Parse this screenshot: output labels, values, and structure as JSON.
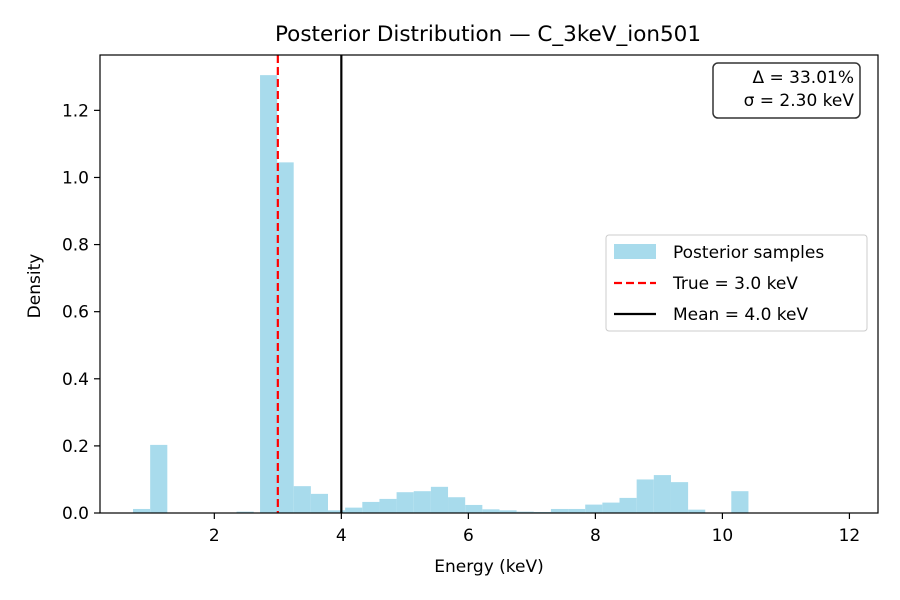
{
  "chart_data": {
    "type": "bar",
    "title": "Posterior Distribution — C_3keV_ion501",
    "xlabel": "Energy (keV)",
    "ylabel": "Density",
    "xlim": [
      0.2,
      12.45
    ],
    "ylim": [
      0,
      1.365
    ],
    "xticks": [
      2,
      4,
      6,
      8,
      10,
      12
    ],
    "yticks": [
      0.0,
      0.2,
      0.4,
      0.6,
      0.8,
      1.0,
      1.2
    ],
    "grid": false,
    "legend_position": "center-right",
    "series": [
      {
        "name": "Posterior samples",
        "kind": "histogram",
        "color": "#a8dbec",
        "bins": [
          {
            "x0": 0.72,
            "x1": 0.99,
            "value": 0.012
          },
          {
            "x0": 0.99,
            "x1": 1.26,
            "value": 0.203
          },
          {
            "x0": 2.35,
            "x1": 2.62,
            "value": 0.004
          },
          {
            "x0": 2.72,
            "x1": 2.99,
            "value": 1.305
          },
          {
            "x0": 2.99,
            "x1": 3.25,
            "value": 1.045
          },
          {
            "x0": 3.25,
            "x1": 3.52,
            "value": 0.08
          },
          {
            "x0": 3.52,
            "x1": 3.79,
            "value": 0.057
          },
          {
            "x0": 3.79,
            "x1": 4.06,
            "value": 0.008
          },
          {
            "x0": 4.06,
            "x1": 4.33,
            "value": 0.016
          },
          {
            "x0": 4.33,
            "x1": 4.6,
            "value": 0.033
          },
          {
            "x0": 4.6,
            "x1": 4.87,
            "value": 0.042
          },
          {
            "x0": 4.87,
            "x1": 5.14,
            "value": 0.062
          },
          {
            "x0": 5.14,
            "x1": 5.41,
            "value": 0.065
          },
          {
            "x0": 5.41,
            "x1": 5.68,
            "value": 0.078
          },
          {
            "x0": 5.68,
            "x1": 5.95,
            "value": 0.047
          },
          {
            "x0": 5.95,
            "x1": 6.22,
            "value": 0.024
          },
          {
            "x0": 6.22,
            "x1": 6.49,
            "value": 0.011
          },
          {
            "x0": 6.49,
            "x1": 6.76,
            "value": 0.008
          },
          {
            "x0": 6.76,
            "x1": 7.03,
            "value": 0.004
          },
          {
            "x0": 7.03,
            "x1": 7.3,
            "value": 0.003
          },
          {
            "x0": 7.3,
            "x1": 7.57,
            "value": 0.012
          },
          {
            "x0": 7.57,
            "x1": 7.84,
            "value": 0.012
          },
          {
            "x0": 7.84,
            "x1": 8.11,
            "value": 0.025
          },
          {
            "x0": 8.11,
            "x1": 8.38,
            "value": 0.031
          },
          {
            "x0": 8.38,
            "x1": 8.65,
            "value": 0.045
          },
          {
            "x0": 8.65,
            "x1": 8.92,
            "value": 0.1
          },
          {
            "x0": 8.92,
            "x1": 9.19,
            "value": 0.113
          },
          {
            "x0": 9.19,
            "x1": 9.46,
            "value": 0.092
          },
          {
            "x0": 9.46,
            "x1": 9.73,
            "value": 0.01
          },
          {
            "x0": 10.14,
            "x1": 10.41,
            "value": 0.065
          }
        ]
      }
    ],
    "vlines": [
      {
        "name": "True = 3.0 keV",
        "x": 3.0,
        "color": "#ff0000",
        "style": "dashed"
      },
      {
        "name": "Mean = 4.0 keV",
        "x": 4.0,
        "color": "#000000",
        "style": "solid"
      }
    ],
    "annotation": {
      "lines": [
        "Δ = 33.01%",
        "σ = 2.30 keV"
      ],
      "position": "top-right"
    }
  }
}
